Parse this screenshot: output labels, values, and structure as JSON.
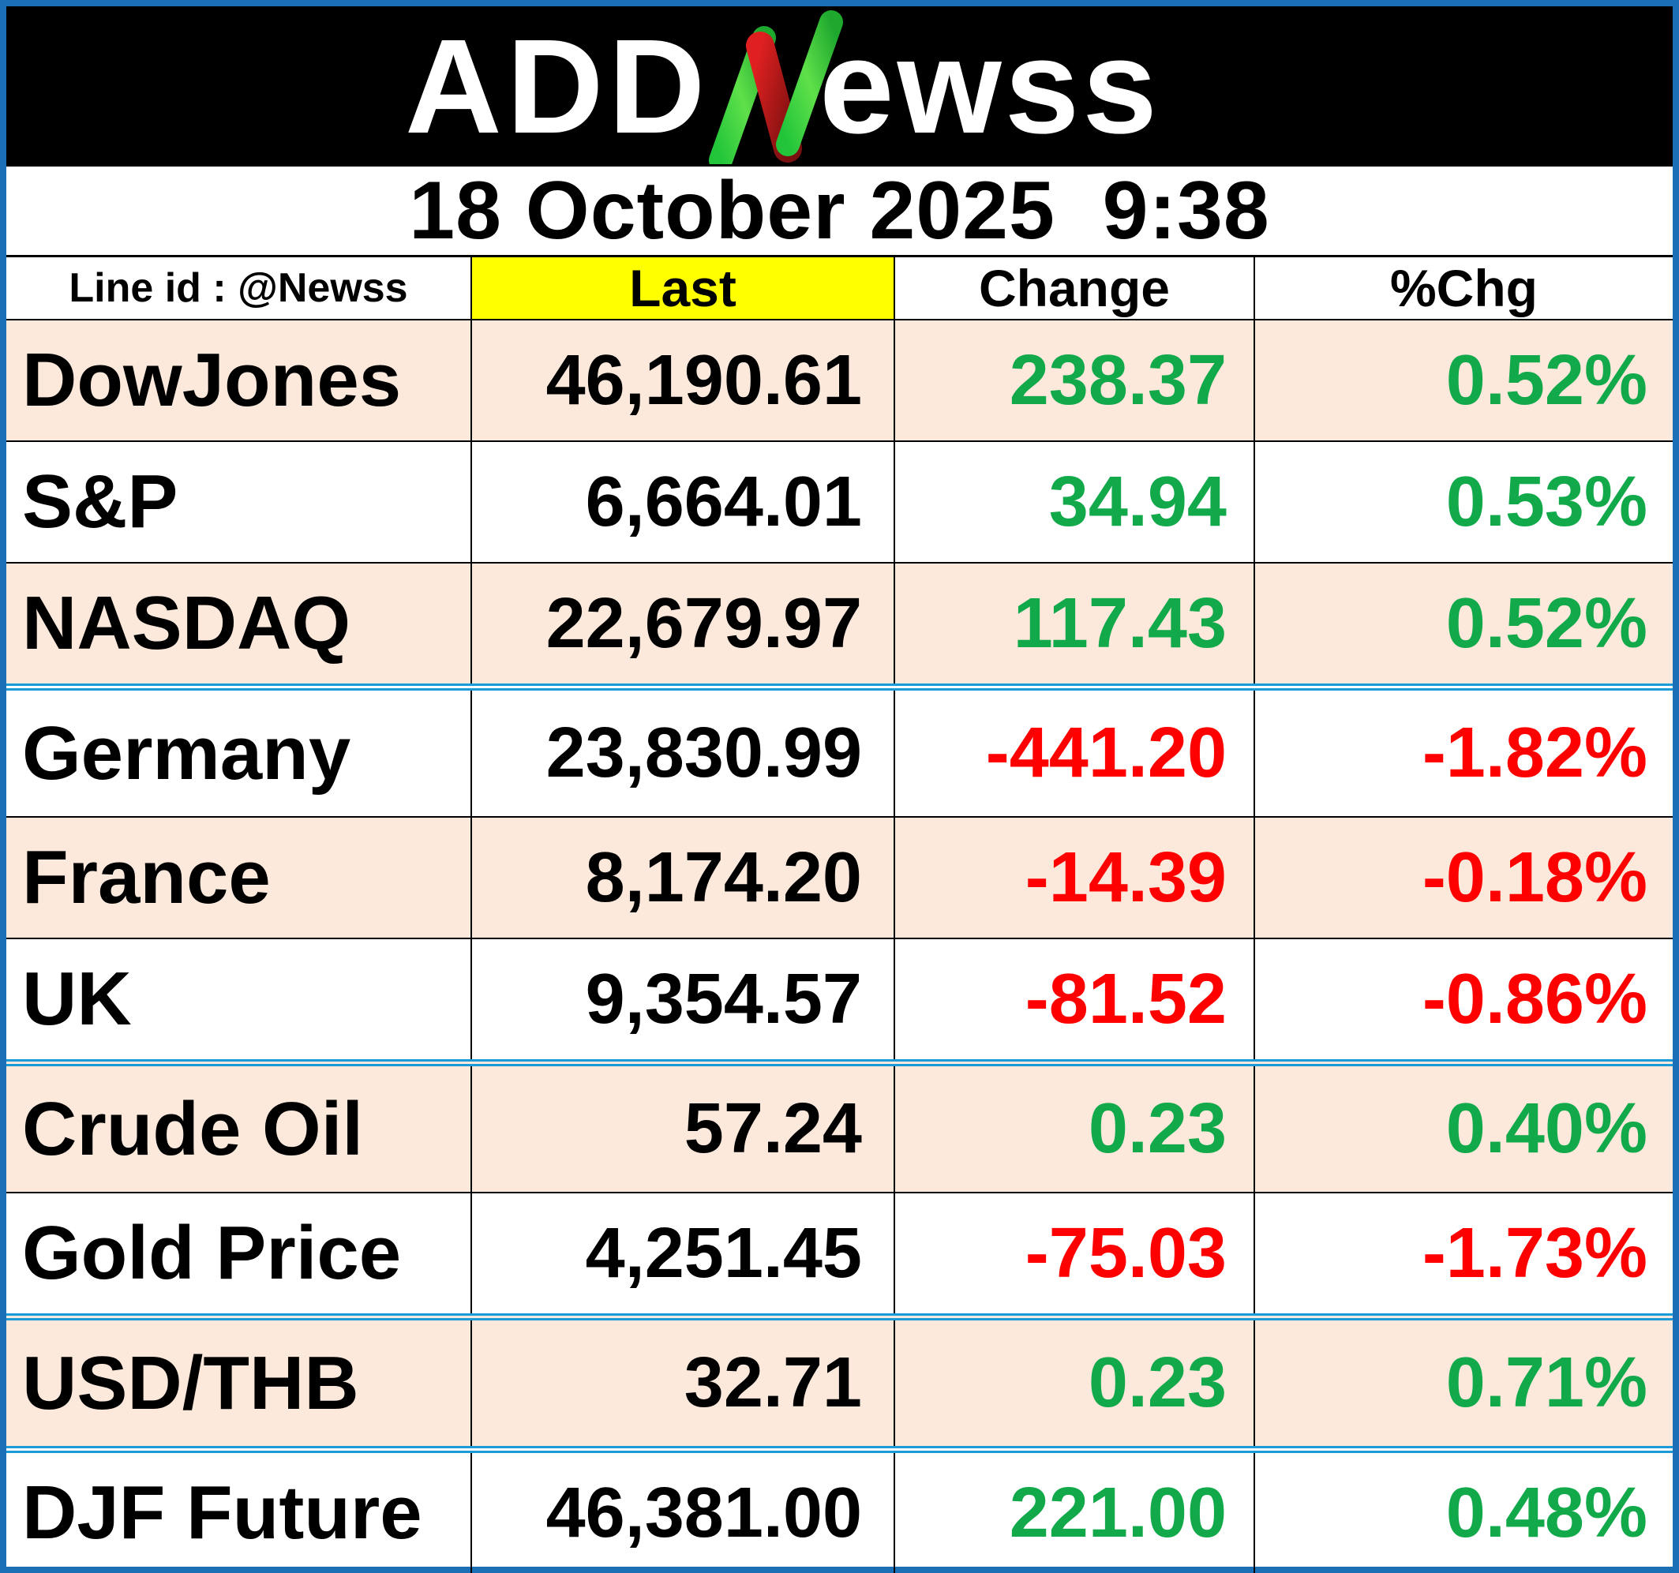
{
  "header": {
    "logo_text": "ADDNewss",
    "logo_part_1": "ADD",
    "logo_part_2": "ewss"
  },
  "date_line": "18 October 2025  9:38",
  "columns": {
    "line_id": "Line id : @Newss",
    "last": "Last",
    "change": "Change",
    "pct": "%Chg"
  },
  "colors": {
    "positive": "#12a94b",
    "negative": "#ff0000",
    "alt_row": "#fce9dc",
    "highlight": "#ffff00",
    "separator": "#1a9ad6"
  },
  "rows": [
    {
      "name": "DowJones",
      "last": "46,190.61",
      "change": "238.37",
      "pct": "0.52%",
      "trend": "up"
    },
    {
      "name": "S&P",
      "last": "6,664.01",
      "change": "34.94",
      "pct": "0.53%",
      "trend": "up"
    },
    {
      "name": "NASDAQ",
      "last": "22,679.97",
      "change": "117.43",
      "pct": "0.52%",
      "trend": "up"
    },
    {
      "name": "Germany",
      "last": "23,830.99",
      "change": "-441.20",
      "pct": "-1.82%",
      "trend": "down"
    },
    {
      "name": "France",
      "last": "8,174.20",
      "change": "-14.39",
      "pct": "-0.18%",
      "trend": "down"
    },
    {
      "name": "UK",
      "last": "9,354.57",
      "change": "-81.52",
      "pct": "-0.86%",
      "trend": "down"
    },
    {
      "name": "Crude Oil",
      "last": "57.24",
      "change": "0.23",
      "pct": "0.40%",
      "trend": "up"
    },
    {
      "name": "Gold Price",
      "last": "4,251.45",
      "change": "-75.03",
      "pct": "-1.73%",
      "trend": "down"
    },
    {
      "name": "USD/THB",
      "last": "32.71",
      "change": "0.23",
      "pct": "0.71%",
      "trend": "up"
    },
    {
      "name": "DJF Future",
      "last": "46,381.00",
      "change": "221.00",
      "pct": "0.48%",
      "trend": "up"
    }
  ]
}
